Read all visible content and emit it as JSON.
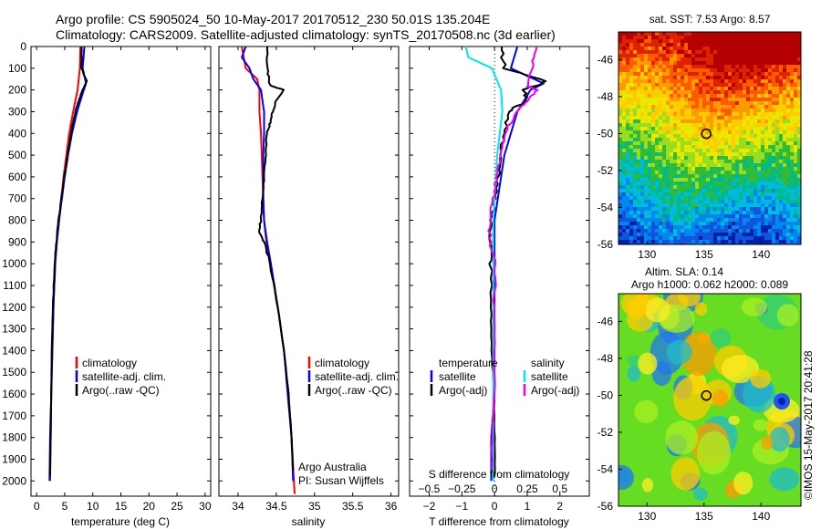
{
  "header": {
    "line1": "Argo profile: CS 5905024_50 10-May-2017 20170512_230 50.01S 135.204E",
    "line2": "Climatology: CARS2009. Satellite-adjusted climatology: synTS_20170508.nc (3d earlier)"
  },
  "colors": {
    "climatology": "#ff0000",
    "satellite": "#0000ff",
    "argo": "#000000",
    "satellite_salinity": "#00e5ee",
    "argo_salinity": "#ee00ee"
  },
  "chart_data": [
    {
      "type": "line",
      "xlabel": "temperature (deg C)",
      "ylabel": "",
      "xlim": [
        -1,
        31
      ],
      "ylim": [
        2070,
        0
      ],
      "xticks": [
        0,
        5,
        10,
        15,
        20,
        25,
        30
      ],
      "yticks": [
        0,
        100,
        200,
        300,
        400,
        500,
        600,
        700,
        800,
        900,
        1000,
        1100,
        1200,
        1300,
        1400,
        1500,
        1600,
        1700,
        1800,
        1900,
        2000
      ],
      "legend": [
        "climatology",
        "satellite-adj. clim.",
        "Argo(..raw -QC)"
      ],
      "legend_placement": "center-right",
      "series": [
        {
          "name": "climatology",
          "color": "#ff0000",
          "depth": [
            0,
            100,
            200,
            300,
            400,
            500,
            600,
            700,
            800,
            900,
            1000,
            1200,
            1400,
            1600,
            1800,
            2000
          ],
          "values": [
            7.8,
            7.7,
            7.3,
            6.5,
            5.8,
            5.3,
            4.8,
            4.4,
            4.0,
            3.6,
            3.3,
            3.0,
            2.8,
            2.6,
            2.5,
            2.4
          ]
        },
        {
          "name": "satellite-adj. clim.",
          "color": "#0000ff",
          "depth": [
            0,
            100,
            170,
            200,
            300,
            400,
            500,
            600,
            700,
            800,
            900,
            1000,
            1200,
            1400,
            1600,
            1800,
            2000
          ],
          "values": [
            8.5,
            8.2,
            8.8,
            8.4,
            7.2,
            6.3,
            5.6,
            5.0,
            4.5,
            4.0,
            3.6,
            3.3,
            3.0,
            2.8,
            2.6,
            2.4,
            2.3
          ]
        },
        {
          "name": "Argo(..raw -QC)",
          "color": "#000000",
          "depth": [
            0,
            100,
            160,
            200,
            250,
            300,
            400,
            500,
            600,
            700,
            800,
            900,
            1000,
            1200,
            1400,
            1600,
            1800,
            1980
          ],
          "values": [
            8.0,
            8.0,
            8.9,
            8.2,
            7.5,
            6.9,
            6.1,
            5.5,
            4.9,
            4.4,
            3.9,
            3.5,
            3.2,
            2.9,
            2.7,
            2.6,
            2.5,
            2.4
          ]
        }
      ]
    },
    {
      "type": "line",
      "xlabel": "salinity",
      "ylabel": "",
      "xlim": [
        33.75,
        36.1
      ],
      "ylim": [
        2070,
        0
      ],
      "xticks": [
        34,
        34.5,
        35,
        35.5,
        36
      ],
      "xticklabels": [
        "34",
        "34.5",
        "35",
        "35.5",
        "36"
      ],
      "legend": [
        "climatology",
        "satellite-adj. clim.",
        "Argo(..raw -QC)"
      ],
      "legend_placement": "center-right",
      "annotation": [
        "Argo Australia",
        "PI: Susan Wijffels"
      ],
      "series": [
        {
          "name": "climatology",
          "color": "#ff0000",
          "depth": [
            0,
            100,
            150,
            200,
            300,
            400,
            500,
            600,
            700,
            800,
            900,
            1000,
            1200,
            1400,
            1600,
            1800,
            2000,
            2060
          ],
          "values": [
            34.05,
            34.1,
            34.25,
            34.28,
            34.28,
            34.3,
            34.31,
            34.32,
            34.33,
            34.34,
            34.37,
            34.42,
            34.52,
            34.6,
            34.66,
            34.7,
            34.73,
            34.74
          ]
        },
        {
          "name": "satellite-adj. clim.",
          "color": "#0000ff",
          "depth": [
            0,
            50,
            100,
            150,
            200,
            300,
            400,
            500,
            600,
            700,
            800,
            900,
            1000,
            1200,
            1400,
            1600,
            1800,
            2000
          ],
          "values": [
            34.1,
            34.05,
            34.15,
            34.2,
            34.3,
            34.34,
            34.34,
            34.33,
            34.33,
            34.33,
            34.34,
            34.38,
            34.43,
            34.52,
            34.6,
            34.65,
            34.7,
            34.72
          ]
        },
        {
          "name": "Argo(..raw -QC)",
          "color": "#000000",
          "depth": [
            0,
            100,
            180,
            200,
            250,
            300,
            350,
            400,
            500,
            600,
            700,
            800,
            850,
            900,
            1000,
            1200,
            1400,
            1600,
            1800,
            1950
          ],
          "values": [
            34.38,
            34.38,
            34.42,
            34.6,
            34.5,
            34.45,
            34.42,
            34.38,
            34.36,
            34.34,
            34.32,
            34.3,
            34.27,
            34.34,
            34.42,
            34.52,
            34.6,
            34.66,
            34.7,
            34.72
          ]
        }
      ]
    },
    {
      "type": "line",
      "xlabel": "T difference from climatology",
      "x2label": "S difference from climatology",
      "ylabel": "",
      "xlim": [
        -2.6,
        2.9
      ],
      "x2lim": [
        -0.65,
        0.725
      ],
      "ylim": [
        2070,
        0
      ],
      "xticks": [
        -2,
        -1,
        0,
        1,
        2
      ],
      "xticklabels": [
        "−2",
        "−1",
        "0",
        "1",
        "2"
      ],
      "x2ticks": [
        -0.5,
        -0.25,
        0,
        0.25,
        0.5
      ],
      "x2ticklabels": [
        "−0.5",
        "−0.25",
        "0",
        "0.25",
        "0.5"
      ],
      "legend_temperature_title": "temperature",
      "legend_salinity_title": "salinity",
      "legend": [
        "satellite",
        "Argo(-adj)",
        "satellite",
        "Argo(-adj)"
      ],
      "legend_placement": "center",
      "series": [
        {
          "name": "satellite",
          "color": "#0000ff",
          "depth": [
            0,
            100,
            170,
            200,
            300,
            400,
            500,
            600,
            700,
            800,
            900,
            1000,
            1200,
            1400,
            1600,
            1800,
            2000
          ],
          "values": [
            0.7,
            0.5,
            1.5,
            1.1,
            0.7,
            0.5,
            0.3,
            0.2,
            0.1,
            0.0,
            0.0,
            0.0,
            0.0,
            0.0,
            0.0,
            -0.1,
            -0.1
          ]
        },
        {
          "name": "Argo(-adj)",
          "color": "#000000",
          "depth": [
            0,
            100,
            160,
            200,
            250,
            300,
            400,
            500,
            600,
            700,
            800,
            900,
            1000,
            1200,
            1400,
            1600,
            1800,
            1980
          ],
          "values": [
            0.2,
            0.3,
            1.6,
            0.9,
            1.0,
            0.4,
            0.3,
            0.2,
            0.1,
            0.0,
            -0.1,
            -0.1,
            -0.1,
            -0.1,
            -0.1,
            0.0,
            0.0,
            0.0
          ]
        },
        {
          "name": "satellite",
          "color": "#00e5ee",
          "depth": [
            0,
            50,
            100,
            200,
            300,
            400,
            500,
            600,
            700,
            800,
            900,
            1000,
            1200,
            1400,
            1600,
            1800,
            2000
          ],
          "values": [
            -0.22,
            -0.2,
            -0.02,
            0.05,
            0.06,
            0.04,
            0.02,
            0.01,
            0.0,
            -0.01,
            -0.01,
            -0.01,
            -0.01,
            -0.01,
            -0.01,
            -0.01,
            -0.01
          ]
        },
        {
          "name": "Argo(-adj)",
          "color": "#ee00ee",
          "depth": [
            0,
            100,
            180,
            200,
            250,
            300,
            400,
            500,
            600,
            700,
            800,
            900,
            1000,
            1200,
            1400,
            1600,
            1800,
            1950
          ],
          "values": [
            0.33,
            0.28,
            0.25,
            0.32,
            0.25,
            0.17,
            0.08,
            0.05,
            0.02,
            -0.01,
            -0.04,
            -0.03,
            0.0,
            0.0,
            0.0,
            0.0,
            -0.02,
            -0.02
          ]
        }
      ]
    },
    {
      "type": "heatmap",
      "title": "sat. SST: 7.53 Argo: 8.57",
      "xlim": [
        127.5,
        143.5
      ],
      "ylim": [
        -56,
        -44.5
      ],
      "xticks": [
        130,
        135,
        140
      ],
      "yticks": [
        -46,
        -48,
        -50,
        -52,
        -54,
        -56
      ],
      "marker": {
        "lon": 135.2,
        "lat": -50.01
      }
    },
    {
      "type": "heatmap",
      "title": "Altim. SLA: 0.14",
      "subtitle": "Argo h1000: 0.062 h2000: 0.089",
      "xlim": [
        127.5,
        143.5
      ],
      "ylim": [
        -56,
        -44.5
      ],
      "xticks": [
        130,
        135,
        140
      ],
      "yticks": [
        -46,
        -48,
        -50,
        -52,
        -54,
        -56
      ],
      "marker": {
        "lon": 135.2,
        "lat": -50.01
      }
    }
  ],
  "footer": {
    "credit": "©IMOS 15-May-2017 20:41:28"
  }
}
